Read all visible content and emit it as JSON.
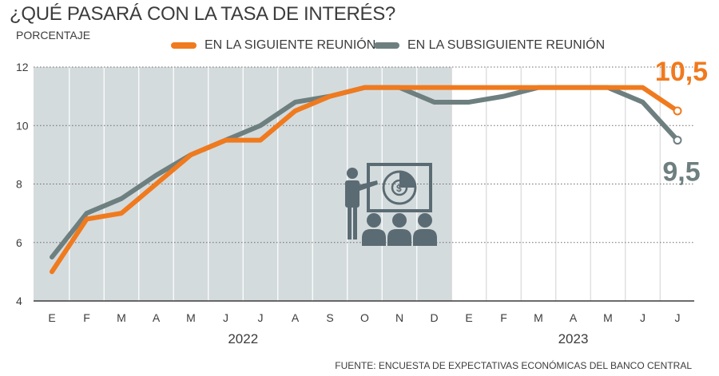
{
  "title": "¿QUÉ PASARÁ CON LA TASA DE INTERÉS?",
  "subtitle": "PORCENTAJE",
  "source": "FUENTE: ENCUESTA DE EXPECTATIVAS ECONÓMICAS DEL BANCO CENTRAL",
  "chart_data": {
    "type": "line",
    "categories": [
      "E",
      "F",
      "M",
      "A",
      "M",
      "J",
      "J",
      "A",
      "S",
      "O",
      "N",
      "D",
      "E",
      "F",
      "M",
      "A",
      "M",
      "J",
      "J"
    ],
    "year_labels": [
      {
        "label": "2022",
        "from": 0,
        "to": 11
      },
      {
        "label": "2023",
        "from": 12,
        "to": 18
      }
    ],
    "shaded_range": [
      0,
      11
    ],
    "ylim": [
      4,
      12
    ],
    "yticks": [
      4,
      6,
      8,
      10,
      12
    ],
    "grid": true,
    "legend_position": "top",
    "series": [
      {
        "name": "EN LA SIGUIENTE REUNIÓN",
        "color": "#f07a1e",
        "values": [
          5.0,
          6.8,
          7.0,
          8.0,
          9.0,
          9.5,
          9.5,
          10.5,
          11.0,
          11.3,
          11.3,
          11.3,
          11.3,
          11.3,
          11.3,
          11.3,
          11.3,
          11.3,
          10.5
        ],
        "end_label": "10,5"
      },
      {
        "name": "EN LA SUBSIGUIENTE REUNIÓN",
        "color": "#6e7f80",
        "values": [
          5.5,
          7.0,
          7.5,
          8.3,
          9.0,
          9.5,
          10.0,
          10.8,
          11.0,
          11.3,
          11.3,
          10.8,
          10.8,
          11.0,
          11.3,
          11.3,
          11.3,
          10.8,
          9.5
        ],
        "end_label": "9,5"
      }
    ],
    "colors": {
      "shade": "#d4dbdd",
      "grid": "#6b6b6b",
      "axis": "#3c3c3c",
      "icon": "#5b6b73"
    },
    "icon": "presentation-audience-icon"
  }
}
